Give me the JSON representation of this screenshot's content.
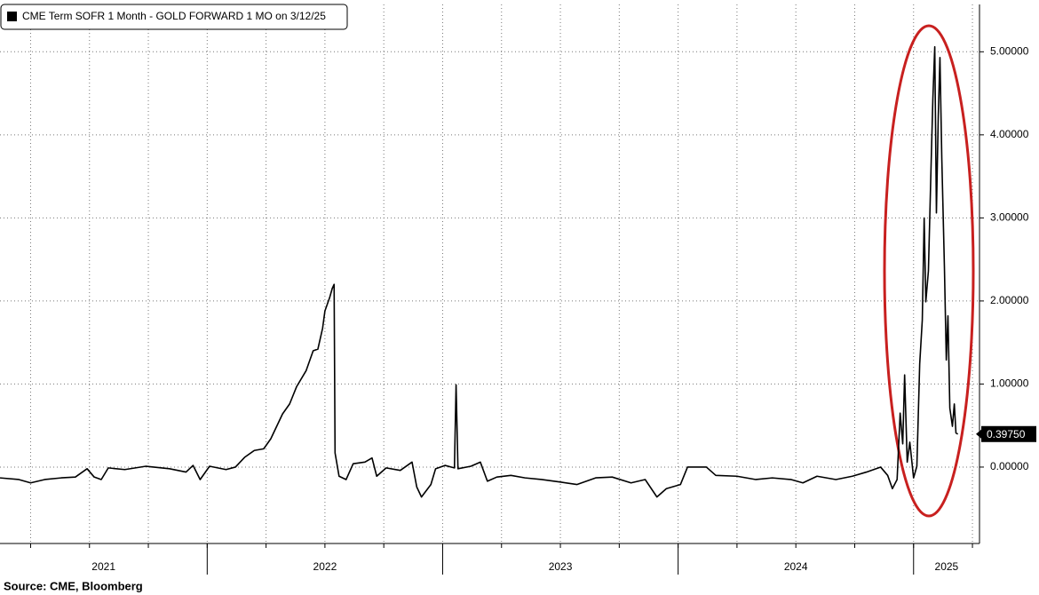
{
  "chart_data": {
    "type": "line",
    "title": "CME Term SOFR 1 Month - GOLD FORWARD 1 MO on 3/12/25",
    "source": "Source: CME, Bloomberg",
    "last_value_label": "0.39750",
    "x": [
      2021.12,
      2021.2,
      2021.25,
      2021.31,
      2021.38,
      2021.44,
      2021.49,
      2021.52,
      2021.55,
      2021.58,
      2021.65,
      2021.74,
      2021.84,
      2021.91,
      2021.94,
      2021.97,
      2022.01,
      2022.08,
      2022.12,
      2022.16,
      2022.2,
      2022.24,
      2022.27,
      2022.32,
      2022.35,
      2022.38,
      2022.42,
      2022.45,
      2022.47,
      2022.49,
      2022.5,
      2022.52,
      2022.531,
      2022.539,
      2022.543,
      2022.56,
      2022.59,
      2022.62,
      2022.67,
      2022.7,
      2022.72,
      2022.76,
      2022.82,
      2022.87,
      2022.89,
      2022.91,
      2022.95,
      2022.97,
      2023.01,
      2023.05,
      2023.057,
      2023.065,
      2023.12,
      2023.16,
      2023.19,
      2023.23,
      2023.29,
      2023.35,
      2023.42,
      2023.5,
      2023.57,
      2023.65,
      2023.72,
      2023.8,
      2023.86,
      2023.91,
      2023.95,
      2024.01,
      2024.04,
      2024.12,
      2024.16,
      2024.25,
      2024.33,
      2024.4,
      2024.48,
      2024.53,
      2024.59,
      2024.67,
      2024.74,
      2024.8,
      2024.86,
      2024.89,
      2024.91,
      2024.93,
      2024.943,
      2024.954,
      2024.962,
      2024.973,
      2024.984,
      2025.0,
      2025.014,
      2025.026,
      2025.037,
      2025.045,
      2025.052,
      2025.063,
      2025.075,
      2025.082,
      2025.09,
      2025.097,
      2025.105,
      2025.112,
      2025.12,
      2025.131,
      2025.139,
      2025.146,
      2025.154,
      2025.165,
      2025.173,
      2025.18,
      2025.188
    ],
    "series": [
      {
        "name": "CME Term SOFR 1 Month - GOLD FORWARD 1 MO on 3/12/25",
        "color": "#000000",
        "values": [
          -0.13,
          -0.15,
          -0.19,
          -0.15,
          -0.13,
          -0.12,
          -0.02,
          -0.12,
          -0.15,
          -0.01,
          -0.03,
          0.01,
          -0.02,
          -0.06,
          0.02,
          -0.15,
          0.01,
          -0.03,
          0.0,
          0.12,
          0.2,
          0.22,
          0.34,
          0.64,
          0.76,
          0.97,
          1.16,
          1.4,
          1.42,
          1.67,
          1.88,
          2.04,
          2.15,
          2.2,
          0.17,
          -0.11,
          -0.15,
          0.04,
          0.06,
          0.11,
          -0.11,
          -0.01,
          -0.04,
          0.06,
          -0.24,
          -0.36,
          -0.21,
          -0.02,
          0.02,
          -0.01,
          0.99,
          -0.02,
          0.01,
          0.06,
          -0.17,
          -0.12,
          -0.1,
          -0.13,
          -0.15,
          -0.18,
          -0.21,
          -0.13,
          -0.12,
          -0.19,
          -0.15,
          -0.36,
          -0.26,
          -0.21,
          0.0,
          0.0,
          -0.1,
          -0.11,
          -0.15,
          -0.13,
          -0.15,
          -0.19,
          -0.11,
          -0.15,
          -0.11,
          -0.06,
          0.0,
          -0.1,
          -0.26,
          -0.15,
          0.65,
          0.28,
          1.11,
          0.06,
          0.3,
          -0.13,
          0.01,
          1.24,
          1.77,
          3.0,
          1.99,
          2.36,
          3.7,
          4.44,
          5.06,
          3.06,
          4.23,
          4.93,
          3.7,
          2.41,
          1.29,
          1.82,
          0.71,
          0.49,
          0.76,
          0.41,
          0.3975
        ]
      }
    ],
    "xlim": [
      2021.12,
      2025.28
    ],
    "xticks": [
      2021,
      2022,
      2023,
      2024,
      2025
    ],
    "xgrid": [
      2021.25,
      2021.5,
      2021.75,
      2022,
      2022.25,
      2022.5,
      2022.75,
      2023,
      2023.25,
      2023.5,
      2023.75,
      2024,
      2024.25,
      2024.5,
      2024.75,
      2025,
      2025.25
    ],
    "ylim": [
      -0.92,
      5.57
    ],
    "yticks": [
      {
        "value": 0,
        "label": "0.00000"
      },
      {
        "value": 1,
        "label": "1.00000"
      },
      {
        "value": 2,
        "label": "2.00000"
      },
      {
        "value": 3,
        "label": "3.00000"
      },
      {
        "value": 4,
        "label": "4.00000"
      },
      {
        "value": 5,
        "label": "5.00000"
      }
    ],
    "grid": true,
    "legend": "top-left"
  }
}
